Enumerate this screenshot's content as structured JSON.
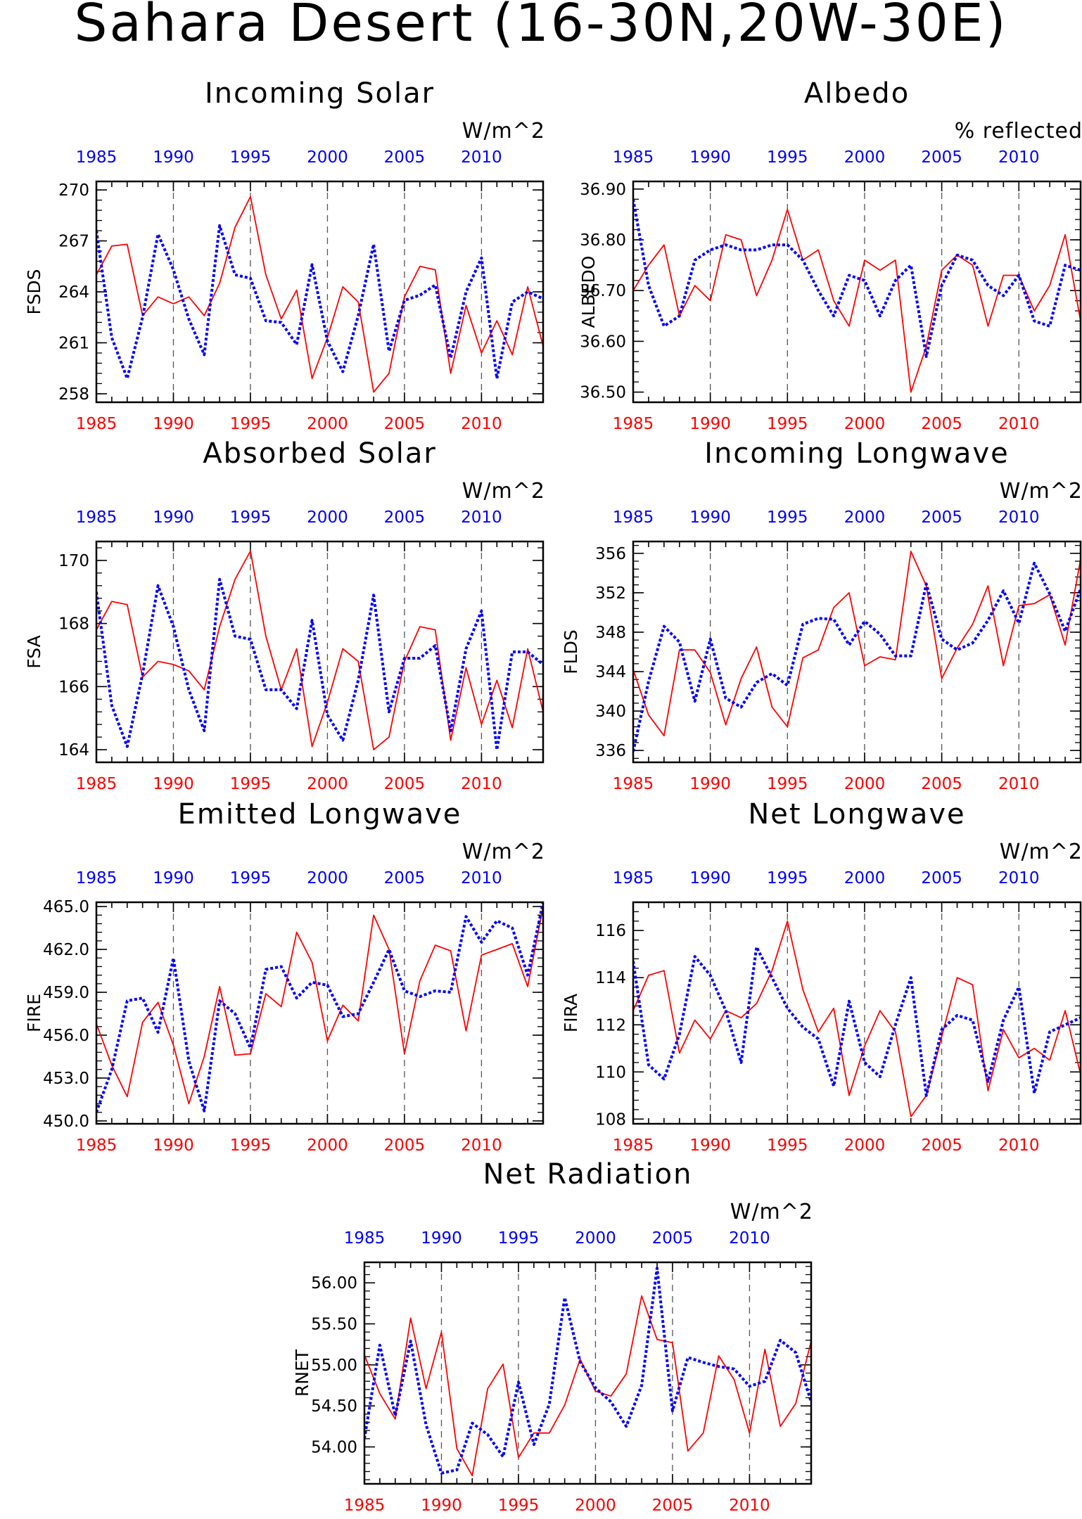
{
  "figure": {
    "title": "Sahara Desert (16-30N,20W-30E)",
    "colors": {
      "model_line": "#ff0000",
      "obs_line": "#0000ff",
      "axes": "#000000",
      "grid": "#555555"
    }
  },
  "chart_data": [
    {
      "type": "line",
      "title": "Incoming Solar",
      "ylabel": "FSDS",
      "units": "W/m^2",
      "xlim": [
        1985,
        2014
      ],
      "ylim": [
        257.5,
        270.5
      ],
      "yticks": [
        258,
        261,
        264,
        267,
        270
      ],
      "ytick_labels": [
        "258",
        "261",
        "264",
        "267",
        "270"
      ],
      "xticks": [
        1985,
        1990,
        1995,
        2000,
        2005,
        2010
      ],
      "x": [
        1985,
        1986,
        1987,
        1988,
        1989,
        1990,
        1991,
        1992,
        1993,
        1994,
        1995,
        1996,
        1997,
        1998,
        1999,
        2000,
        2001,
        2002,
        2003,
        2004,
        2005,
        2006,
        2007,
        2008,
        2009,
        2010,
        2011,
        2012,
        2013,
        2014
      ],
      "series": [
        {
          "color": "#ff0000",
          "style": "solid",
          "values": [
            265.0,
            266.7,
            266.8,
            262.6,
            263.7,
            263.3,
            263.7,
            262.6,
            264.5,
            267.8,
            269.6,
            265.0,
            262.4,
            264.1,
            258.9,
            261.3,
            264.3,
            263.4,
            258.1,
            259.2,
            263.7,
            265.5,
            265.3,
            259.2,
            263.2,
            260.4,
            262.3,
            260.3,
            264.3,
            260.8
          ]
        },
        {
          "color": "#0000ff",
          "style": "dotted",
          "values": [
            267.6,
            261.3,
            258.9,
            262.5,
            267.4,
            265.3,
            262.4,
            260.3,
            267.9,
            265.0,
            264.8,
            262.3,
            262.2,
            260.9,
            265.6,
            261.1,
            259.3,
            262.6,
            266.8,
            260.5,
            263.5,
            263.8,
            264.4,
            260.1,
            264.0,
            266.0,
            258.9,
            263.4,
            264.0,
            263.6
          ]
        }
      ]
    },
    {
      "type": "line",
      "title": "Albedo",
      "ylabel": "ALBEDO",
      "units": "% reflected",
      "xlim": [
        1985,
        2014
      ],
      "ylim": [
        36.48,
        36.915
      ],
      "yticks": [
        36.5,
        36.6,
        36.7,
        36.8,
        36.9
      ],
      "ytick_labels": [
        "36.50",
        "36.60",
        "36.70",
        "36.80",
        "36.90"
      ],
      "xticks": [
        1985,
        1990,
        1995,
        2000,
        2005,
        2010
      ],
      "x": [
        1985,
        1986,
        1987,
        1988,
        1989,
        1990,
        1991,
        1992,
        1993,
        1994,
        1995,
        1996,
        1997,
        1998,
        1999,
        2000,
        2001,
        2002,
        2003,
        2004,
        2005,
        2006,
        2007,
        2008,
        2009,
        2010,
        2011,
        2012,
        2013,
        2014
      ],
      "series": [
        {
          "color": "#ff0000",
          "style": "solid",
          "values": [
            36.7,
            36.75,
            36.79,
            36.65,
            36.71,
            36.68,
            36.81,
            36.8,
            36.69,
            36.76,
            36.86,
            36.76,
            36.78,
            36.68,
            36.63,
            36.76,
            36.74,
            36.76,
            36.5,
            36.59,
            36.74,
            36.77,
            36.75,
            36.63,
            36.73,
            36.73,
            36.66,
            36.71,
            36.81,
            36.64
          ]
        },
        {
          "color": "#0000ff",
          "style": "dotted",
          "values": [
            36.88,
            36.71,
            36.63,
            36.65,
            36.76,
            36.78,
            36.79,
            36.78,
            36.78,
            36.79,
            36.79,
            36.76,
            36.7,
            36.65,
            36.73,
            36.72,
            36.65,
            36.72,
            36.75,
            36.57,
            36.71,
            36.77,
            36.76,
            36.71,
            36.69,
            36.73,
            36.64,
            36.63,
            36.75,
            36.74
          ]
        }
      ]
    },
    {
      "type": "line",
      "title": "Absorbed Solar",
      "ylabel": "FSA",
      "units": "W/m^2",
      "xlim": [
        1985,
        2014
      ],
      "ylim": [
        163.6,
        170.6
      ],
      "yticks": [
        164,
        166,
        168,
        170
      ],
      "ytick_labels": [
        "164",
        "166",
        "168",
        "170"
      ],
      "xticks": [
        1985,
        1990,
        1995,
        2000,
        2005,
        2010
      ],
      "x": [
        1985,
        1986,
        1987,
        1988,
        1989,
        1990,
        1991,
        1992,
        1993,
        1994,
        1995,
        1996,
        1997,
        1998,
        1999,
        2000,
        2001,
        2002,
        2003,
        2004,
        2005,
        2006,
        2007,
        2008,
        2009,
        2010,
        2011,
        2012,
        2013,
        2014
      ],
      "series": [
        {
          "color": "#ff0000",
          "style": "solid",
          "values": [
            167.8,
            168.7,
            168.6,
            166.3,
            166.8,
            166.7,
            166.5,
            165.9,
            167.9,
            169.4,
            170.3,
            167.6,
            165.9,
            167.2,
            164.1,
            165.5,
            167.2,
            166.8,
            164.0,
            164.4,
            166.8,
            167.9,
            167.8,
            164.3,
            166.6,
            164.8,
            166.2,
            164.7,
            167.2,
            165.2
          ]
        },
        {
          "color": "#0000ff",
          "style": "dotted",
          "values": [
            169.0,
            165.4,
            164.1,
            166.4,
            169.2,
            167.9,
            165.9,
            164.6,
            169.4,
            167.6,
            167.5,
            165.9,
            165.9,
            165.3,
            168.1,
            165.1,
            164.3,
            166.2,
            168.9,
            165.2,
            166.9,
            166.9,
            167.3,
            164.6,
            167.2,
            168.4,
            164.0,
            167.1,
            167.1,
            166.7
          ]
        }
      ]
    },
    {
      "type": "line",
      "title": "Incoming Longwave",
      "ylabel": "FLDS",
      "units": "W/m^2",
      "xlim": [
        1985,
        2014
      ],
      "ylim": [
        334.8,
        357.2
      ],
      "yticks": [
        336,
        340,
        344,
        348,
        352,
        356
      ],
      "ytick_labels": [
        "336",
        "340",
        "344",
        "348",
        "352",
        "356"
      ],
      "xticks": [
        1985,
        1990,
        1995,
        2000,
        2005,
        2010
      ],
      "x": [
        1985,
        1986,
        1987,
        1988,
        1989,
        1990,
        1991,
        1992,
        1993,
        1994,
        1995,
        1996,
        1997,
        1998,
        1999,
        2000,
        2001,
        2002,
        2003,
        2004,
        2005,
        2006,
        2007,
        2008,
        2009,
        2010,
        2011,
        2012,
        2013,
        2014
      ],
      "series": [
        {
          "color": "#ff0000",
          "style": "solid",
          "values": [
            344.2,
            339.6,
            337.5,
            346.2,
            346.2,
            343.9,
            338.6,
            343.3,
            346.5,
            340.4,
            338.4,
            345.4,
            346.2,
            350.5,
            352.0,
            344.6,
            345.5,
            345.2,
            356.2,
            352.7,
            343.3,
            346.4,
            348.8,
            352.7,
            344.6,
            350.7,
            350.9,
            351.8,
            346.7,
            355.4
          ]
        },
        {
          "color": "#0000ff",
          "style": "dotted",
          "values": [
            335.9,
            343.0,
            348.6,
            347.0,
            341.0,
            347.3,
            341.3,
            340.4,
            342.9,
            343.8,
            342.6,
            348.8,
            349.4,
            349.3,
            346.7,
            349.1,
            347.8,
            345.6,
            345.6,
            352.9,
            347.3,
            346.2,
            346.9,
            349.2,
            352.2,
            348.9,
            355.0,
            351.9,
            348.1,
            352.4
          ]
        }
      ]
    },
    {
      "type": "line",
      "title": "Emitted Longwave",
      "ylabel": "FIRE",
      "units": "W/m^2",
      "xlim": [
        1985,
        2014
      ],
      "ylim": [
        449.8,
        465.3
      ],
      "yticks": [
        450,
        453,
        456,
        459,
        462,
        465
      ],
      "ytick_labels": [
        "450.0",
        "453.0",
        "456.0",
        "459.0",
        "462.0",
        "465.0"
      ],
      "xticks": [
        1985,
        1990,
        1995,
        2000,
        2005,
        2010
      ],
      "x": [
        1985,
        1986,
        1987,
        1988,
        1989,
        1990,
        1991,
        1992,
        1993,
        1994,
        1995,
        1996,
        1997,
        1998,
        1999,
        2000,
        2001,
        2002,
        2003,
        2004,
        2005,
        2006,
        2007,
        2008,
        2009,
        2010,
        2011,
        2012,
        2013,
        2014
      ],
      "series": [
        {
          "color": "#ff0000",
          "style": "solid",
          "values": [
            456.8,
            453.9,
            451.7,
            456.9,
            458.3,
            455.3,
            451.2,
            454.5,
            459.4,
            454.6,
            454.7,
            458.9,
            458.0,
            463.2,
            461.1,
            455.6,
            458.1,
            457.0,
            464.4,
            462.0,
            454.7,
            459.8,
            462.3,
            461.9,
            456.3,
            461.6,
            462.0,
            462.4,
            459.4,
            465.0
          ]
        },
        {
          "color": "#0000ff",
          "style": "dotted",
          "values": [
            450.6,
            453.6,
            458.4,
            458.6,
            456.2,
            461.4,
            454.2,
            450.7,
            458.4,
            457.5,
            455.1,
            460.6,
            460.8,
            458.6,
            459.7,
            459.5,
            457.3,
            457.5,
            459.7,
            462.0,
            459.1,
            458.7,
            459.1,
            459.0,
            464.3,
            462.5,
            464.0,
            463.5,
            460.2,
            465.3
          ]
        }
      ]
    },
    {
      "type": "line",
      "title": "Net Longwave",
      "ylabel": "FIRA",
      "units": "W/m^2",
      "xlim": [
        1985,
        2014
      ],
      "ylim": [
        107.8,
        117.2
      ],
      "yticks": [
        108,
        110,
        112,
        114,
        116
      ],
      "ytick_labels": [
        "108",
        "110",
        "112",
        "114",
        "116"
      ],
      "xticks": [
        1985,
        1990,
        1995,
        2000,
        2005,
        2010
      ],
      "x": [
        1985,
        1986,
        1987,
        1988,
        1989,
        1990,
        1991,
        1992,
        1993,
        1994,
        1995,
        1996,
        1997,
        1998,
        1999,
        2000,
        2001,
        2002,
        2003,
        2004,
        2005,
        2006,
        2007,
        2008,
        2009,
        2010,
        2011,
        2012,
        2013,
        2014
      ],
      "series": [
        {
          "color": "#ff0000",
          "style": "solid",
          "values": [
            112.6,
            114.1,
            114.3,
            110.8,
            112.2,
            111.4,
            112.6,
            112.3,
            112.9,
            114.3,
            116.4,
            113.5,
            111.7,
            112.7,
            109.0,
            111.1,
            112.6,
            111.7,
            108.1,
            109.0,
            111.5,
            114.0,
            113.7,
            109.2,
            111.8,
            110.6,
            111.0,
            110.5,
            112.6,
            109.9
          ]
        },
        {
          "color": "#0000ff",
          "style": "dotted",
          "values": [
            114.7,
            110.3,
            109.7,
            111.6,
            114.9,
            114.1,
            112.6,
            110.4,
            115.3,
            114.0,
            112.7,
            111.9,
            111.4,
            109.4,
            113.0,
            110.4,
            109.8,
            112.0,
            114.0,
            109.0,
            111.8,
            112.4,
            112.2,
            109.6,
            112.2,
            113.6,
            109.1,
            111.7,
            112.0,
            112.3
          ]
        }
      ]
    },
    {
      "type": "line",
      "title": "Net Radiation",
      "ylabel": "RNET",
      "units": "W/m^2",
      "xlim": [
        1985,
        2014
      ],
      "ylim": [
        53.55,
        56.25
      ],
      "yticks": [
        54.0,
        54.5,
        55.0,
        55.5,
        56.0
      ],
      "ytick_labels": [
        "54.00",
        "54.50",
        "55.00",
        "55.50",
        "56.00"
      ],
      "xticks": [
        1985,
        1990,
        1995,
        2000,
        2005,
        2010
      ],
      "x": [
        1985,
        1986,
        1987,
        1988,
        1989,
        1990,
        1991,
        1992,
        1993,
        1994,
        1995,
        1996,
        1997,
        1998,
        1999,
        2000,
        2001,
        2002,
        2003,
        2004,
        2005,
        2006,
        2007,
        2008,
        2009,
        2010,
        2011,
        2012,
        2013,
        2014
      ],
      "series": [
        {
          "color": "#ff0000",
          "style": "solid",
          "values": [
            55.12,
            54.65,
            54.34,
            55.57,
            54.71,
            55.4,
            53.98,
            53.65,
            54.71,
            55.01,
            53.87,
            54.17,
            54.17,
            54.51,
            55.07,
            54.68,
            54.62,
            54.89,
            55.84,
            55.31,
            55.27,
            53.95,
            54.17,
            55.11,
            54.82,
            54.17,
            55.19,
            54.25,
            54.53,
            55.29
          ]
        },
        {
          "color": "#0000ff",
          "style": "dotted",
          "values": [
            54.1,
            55.24,
            54.38,
            55.29,
            54.27,
            53.68,
            53.72,
            54.29,
            54.15,
            53.88,
            54.79,
            54.03,
            54.52,
            55.82,
            55.04,
            54.72,
            54.55,
            54.25,
            54.75,
            56.18,
            54.44,
            55.09,
            55.03,
            54.98,
            54.95,
            54.74,
            54.8,
            55.3,
            55.15,
            54.55
          ]
        }
      ]
    }
  ]
}
